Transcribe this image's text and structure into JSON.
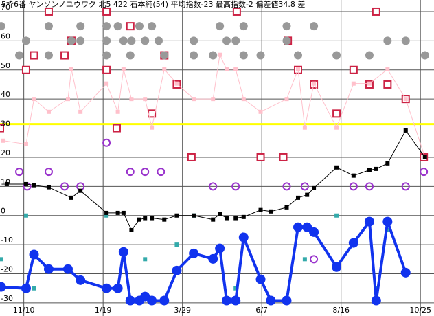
{
  "chart_data": {
    "type": "line",
    "title": "5枠6番 ヤンソンノユウワク 北5 422 石本純(54) 平均指数-23 最高指数-2 偏差値34.8 差",
    "xlim": [
      -21,
      362
    ],
    "ylim": [
      -34.5,
      74
    ],
    "xticks": [
      {
        "value": 0,
        "label": "11/10"
      },
      {
        "value": 70,
        "label": "1/19"
      },
      {
        "value": 140,
        "label": "3/29"
      },
      {
        "value": 210,
        "label": "6/7"
      },
      {
        "value": 280,
        "label": "8/16"
      },
      {
        "value": 350,
        "label": "10/25"
      }
    ],
    "yticks": [
      -30,
      -20,
      -10,
      0,
      10,
      20,
      30,
      40,
      50,
      60,
      70
    ],
    "grid": true,
    "reference_line": {
      "value": 31.4,
      "color": "#ffff00"
    },
    "series": [
      {
        "marker": "square-open",
        "color": "#cc2244",
        "line": false,
        "x": [
          22,
          73,
          94,
          42,
          9,
          36,
          124,
          73,
          2,
          135,
          113,
          82,
          -21,
          148,
          209,
          188,
          233,
          242,
          256,
          276,
          291,
          305,
          311,
          321,
          337,
          353,
          229
        ],
        "values": [
          70,
          70,
          65,
          60,
          55,
          55,
          55,
          50,
          50,
          45,
          35,
          30,
          30,
          20,
          20,
          70,
          60,
          50,
          45,
          35,
          50,
          45,
          70,
          45,
          40,
          20,
          20
        ]
      },
      {
        "marker": "dot",
        "color": "#999999",
        "line": false,
        "x": [
          -20,
          22,
          50,
          73,
          83,
          102,
          113,
          173,
          194,
          232,
          256,
          2,
          42,
          50,
          73,
          88,
          95,
          107,
          119,
          150,
          179,
          187,
          232,
          321,
          337,
          -4,
          22,
          73,
          94,
          124,
          150,
          167,
          194,
          209,
          242,
          276,
          305,
          354
        ],
        "values": [
          65,
          65,
          65,
          65,
          65,
          65,
          65,
          65,
          65,
          65,
          65,
          60,
          60,
          60,
          60,
          60,
          60,
          60,
          60,
          60,
          60,
          60,
          60,
          60,
          60,
          55,
          55,
          55,
          55,
          55,
          55,
          55,
          55,
          55,
          55,
          55,
          55,
          55
        ]
      },
      {
        "marker": "square",
        "color": "#ffc0cb",
        "line": true,
        "width": 1,
        "x": [
          -18,
          2,
          9,
          22,
          39,
          42,
          50,
          73,
          83,
          88,
          95,
          107,
          113,
          124,
          135,
          150,
          167,
          173,
          179,
          187,
          194,
          209,
          232,
          242,
          248,
          256,
          276,
          291,
          305,
          321,
          337,
          354
        ],
        "values": [
          25.7,
          24.5,
          40,
          35.6,
          40,
          50.2,
          35.6,
          45.3,
          35.6,
          50.2,
          40,
          40,
          30.2,
          50.2,
          45.3,
          40,
          40,
          55.2,
          50.2,
          50.2,
          40,
          35.6,
          40,
          50.2,
          30.2,
          45.3,
          30.2,
          45.3,
          45.3,
          50.2,
          40,
          20
        ]
      },
      {
        "marker": "circle-open",
        "color": "#9933cc",
        "line": false,
        "x": [
          -4,
          22,
          73,
          94,
          107,
          121,
          3,
          36,
          50,
          167,
          187,
          232,
          248,
          291,
          305,
          337,
          353,
          256
        ],
        "values": [
          15,
          15,
          25,
          15,
          15,
          15,
          10,
          10,
          10,
          10,
          10,
          10,
          10,
          10,
          10,
          10,
          15,
          -15
        ]
      },
      {
        "marker": "square",
        "color": "#33aaaa",
        "line": false,
        "x": [
          2,
          -20,
          9,
          73,
          107,
          135,
          150,
          187,
          248,
          276,
          321,
          311
        ],
        "values": [
          0,
          -15,
          -25,
          0,
          -15,
          -10,
          0,
          -25,
          -15,
          0,
          -5,
          -25
        ]
      },
      {
        "marker": "square",
        "color": "#000000",
        "line": true,
        "width": 1,
        "x": [
          -15,
          2,
          9,
          22,
          42,
          50,
          73,
          83,
          88,
          95,
          102,
          107,
          113,
          124,
          135,
          150,
          167,
          173,
          179,
          187,
          194,
          209,
          218,
          232,
          242,
          250,
          256,
          276,
          291,
          305,
          311,
          321,
          337,
          354
        ],
        "values": [
          10.8,
          10.8,
          10.4,
          9.7,
          6.1,
          8.5,
          0.9,
          0.9,
          0.9,
          -5,
          -1.4,
          -0.9,
          -0.9,
          -1.4,
          0,
          0,
          -1.4,
          0.5,
          -0.9,
          -0.9,
          -0.5,
          1.9,
          1.4,
          2.8,
          6.1,
          7.1,
          9.4,
          16.5,
          13.7,
          15.6,
          16,
          17.9,
          29.2,
          20
        ]
      },
      {
        "marker": "dot-big",
        "color": "#1133ee",
        "line": true,
        "width": 4,
        "x": [
          -20,
          2,
          9,
          22,
          39,
          50,
          73,
          83,
          88,
          94,
          102,
          107,
          113,
          124,
          135,
          150,
          167,
          173,
          179,
          187,
          194,
          209,
          218,
          232,
          242,
          250,
          256,
          276,
          291,
          305,
          311,
          321,
          337
        ],
        "values": [
          -24.5,
          -25,
          -13.4,
          -18.4,
          -18.4,
          -22.2,
          -25,
          -25,
          -12.5,
          -29.2,
          -29.2,
          -27.8,
          -29.2,
          -29.2,
          -18.9,
          -13,
          -14.9,
          -11.3,
          -29.2,
          -29.2,
          -7.5,
          -21.9,
          -29.2,
          -29.2,
          -4,
          -4,
          -5.7,
          -17.7,
          -9.4,
          -2.1,
          -29.2,
          -2.1,
          -19.6
        ]
      }
    ]
  }
}
